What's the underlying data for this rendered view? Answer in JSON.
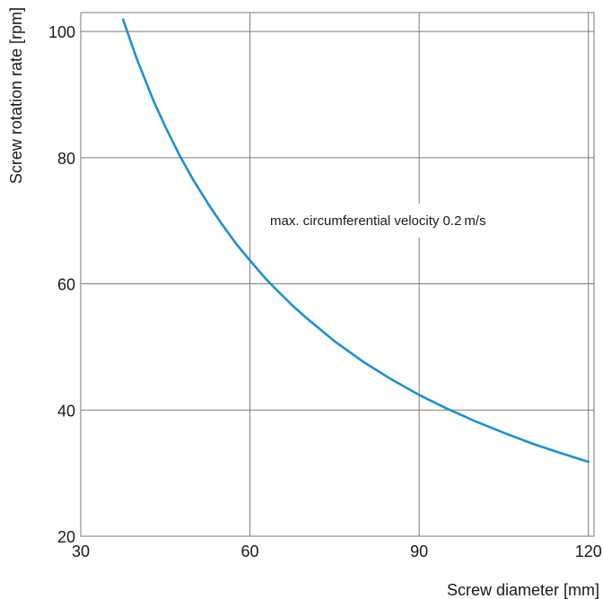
{
  "chart_data": {
    "type": "line",
    "title": "",
    "xlabel": "Screw diameter [mm]",
    "ylabel": "Screw rotation rate [rpm]",
    "xlim": [
      30,
      121
    ],
    "ylim": [
      20,
      103
    ],
    "x_ticks": [
      {
        "value": 30,
        "label": "30"
      },
      {
        "value": 60,
        "label": "60"
      },
      {
        "value": 90,
        "label": "90"
      },
      {
        "value": 120,
        "label": "120"
      }
    ],
    "y_ticks": [
      {
        "value": 20,
        "label": "20"
      },
      {
        "value": 40,
        "label": "40"
      },
      {
        "value": 60,
        "label": "60"
      },
      {
        "value": 80,
        "label": "80"
      },
      {
        "value": 100,
        "label": "100"
      }
    ],
    "grid": true,
    "annotation": "max. circumferential velocity 0.2 m/s",
    "series": [
      {
        "color": "#1e90d0",
        "x": [
          37.5,
          40,
          43,
          45,
          47.5,
          50,
          53,
          55,
          57.5,
          60,
          63,
          65,
          67.5,
          70,
          75,
          80,
          85,
          90,
          95,
          100,
          105,
          110,
          115,
          120
        ],
        "y": [
          101.9,
          95.5,
          88.8,
          84.9,
          80.4,
          76.4,
          72.1,
          69.5,
          66.4,
          63.7,
          60.6,
          58.8,
          56.6,
          54.6,
          50.9,
          47.7,
          44.9,
          42.4,
          40.2,
          38.2,
          36.4,
          34.7,
          33.2,
          31.8
        ]
      }
    ]
  }
}
